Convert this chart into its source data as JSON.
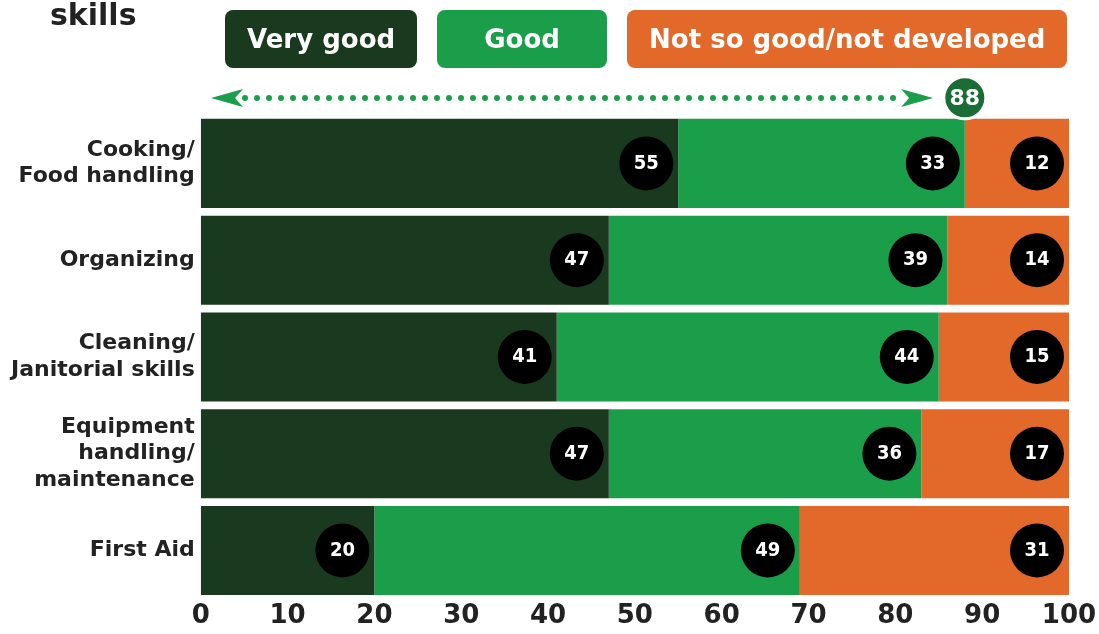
{
  "chart_data": {
    "type": "bar",
    "orientation": "horizontal",
    "stacked": true,
    "title": "skills",
    "categories": [
      "Cooking/\nFood handling",
      "Organizing",
      "Cleaning/\nJanitorial skills",
      "Equipment\nhandling/\nmaintenance",
      "First Aid"
    ],
    "series": [
      {
        "name": "Very good",
        "color": "#1a3a1f",
        "values": [
          55,
          47,
          41,
          47,
          20
        ]
      },
      {
        "name": "Good",
        "color": "#1a9e4a",
        "values": [
          33,
          39,
          44,
          36,
          49
        ]
      },
      {
        "name": "Not so good/not developed",
        "color": "#e2692a",
        "values": [
          12,
          14,
          15,
          17,
          31
        ]
      }
    ],
    "xlim": [
      0,
      100
    ],
    "xticks": [
      0,
      10,
      20,
      30,
      40,
      50,
      60,
      70,
      80,
      90,
      100
    ],
    "grid": false,
    "legend": "top",
    "data_labels": true,
    "annotations": [
      {
        "text": "88",
        "x": 88,
        "y": "Cooking/\nFood handling"
      }
    ]
  }
}
